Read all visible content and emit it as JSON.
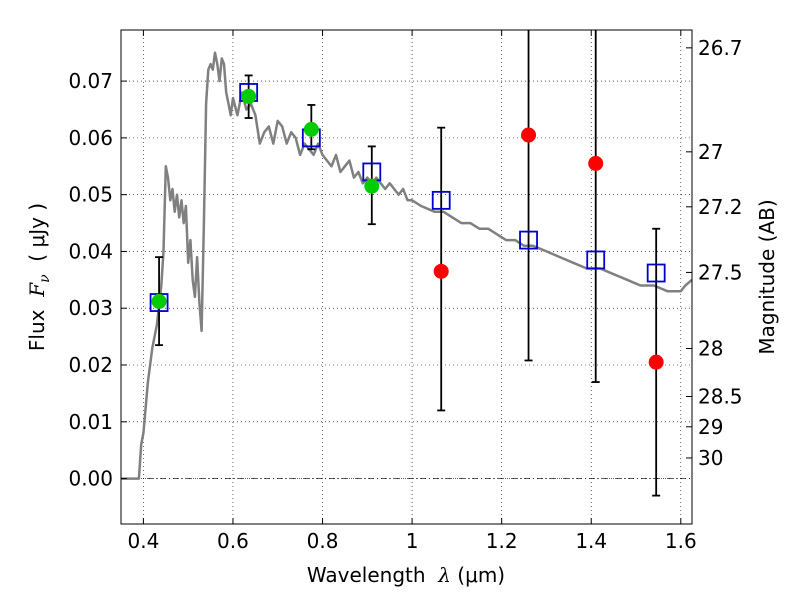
{
  "chart_data": {
    "type": "scatter",
    "xlabel": {
      "prefix": "Wavelength  ",
      "symbol": "λ",
      "suffix": " (μm)"
    },
    "ylabel": {
      "prefix": "Flux  ",
      "symbol": "F",
      "sub": "ν",
      "suffix": "  ( μJy )"
    },
    "y2label": "Magnitude (AB)",
    "xlim": [
      0.35,
      1.625
    ],
    "ylim": [
      -0.008,
      0.079
    ],
    "grid": true,
    "xticks": [
      {
        "value": 0.4,
        "label": "0.4"
      },
      {
        "value": 0.6,
        "label": "0.6"
      },
      {
        "value": 0.8,
        "label": "0.8"
      },
      {
        "value": 1.0,
        "label": "1"
      },
      {
        "value": 1.2,
        "label": "1.2"
      },
      {
        "value": 1.4,
        "label": "1.4"
      },
      {
        "value": 1.6,
        "label": "1.6"
      }
    ],
    "yticks": [
      {
        "value": 0.0,
        "label": "0.00"
      },
      {
        "value": 0.01,
        "label": "0.01"
      },
      {
        "value": 0.02,
        "label": "0.02"
      },
      {
        "value": 0.03,
        "label": "0.03"
      },
      {
        "value": 0.04,
        "label": "0.04"
      },
      {
        "value": 0.05,
        "label": "0.05"
      },
      {
        "value": 0.06,
        "label": "0.06"
      },
      {
        "value": 0.07,
        "label": "0.07"
      }
    ],
    "y2ticks": [
      {
        "label": "26.7",
        "value": 26.7
      },
      {
        "label": "27",
        "value": 27.0
      },
      {
        "label": "27.2",
        "value": 27.2
      },
      {
        "label": "27.5",
        "value": 27.5
      },
      {
        "label": "28",
        "value": 28.0
      },
      {
        "label": "28.5",
        "value": 28.5
      },
      {
        "label": "29",
        "value": 29.0
      },
      {
        "label": "30",
        "value": 30.0
      }
    ],
    "series": [
      {
        "kind": "line",
        "color": "#808080",
        "x": [
          0.35,
          0.38,
          0.39,
          0.395,
          0.4,
          0.41,
          0.42,
          0.43,
          0.44,
          0.445,
          0.45,
          0.455,
          0.46,
          0.465,
          0.47,
          0.475,
          0.48,
          0.485,
          0.49,
          0.495,
          0.5,
          0.505,
          0.51,
          0.515,
          0.52,
          0.525,
          0.53,
          0.535,
          0.54,
          0.545,
          0.55,
          0.555,
          0.56,
          0.565,
          0.57,
          0.575,
          0.58,
          0.585,
          0.59,
          0.595,
          0.6,
          0.61,
          0.62,
          0.63,
          0.64,
          0.65,
          0.66,
          0.67,
          0.68,
          0.69,
          0.7,
          0.71,
          0.72,
          0.73,
          0.74,
          0.75,
          0.76,
          0.77,
          0.78,
          0.79,
          0.8,
          0.81,
          0.82,
          0.83,
          0.84,
          0.85,
          0.86,
          0.87,
          0.88,
          0.89,
          0.9,
          0.91,
          0.92,
          0.93,
          0.94,
          0.95,
          0.96,
          0.97,
          0.98,
          0.99,
          1.0,
          1.02,
          1.05,
          1.07,
          1.09,
          1.11,
          1.13,
          1.15,
          1.17,
          1.19,
          1.21,
          1.23,
          1.25,
          1.27,
          1.3,
          1.33,
          1.36,
          1.39,
          1.42,
          1.45,
          1.48,
          1.51,
          1.54,
          1.57,
          1.59,
          1.6,
          1.61,
          1.625
        ],
        "y": [
          0.0,
          0.0,
          0.0,
          0.006,
          0.008,
          0.017,
          0.023,
          0.027,
          0.034,
          0.04,
          0.055,
          0.053,
          0.049,
          0.051,
          0.047,
          0.05,
          0.046,
          0.049,
          0.045,
          0.048,
          0.038,
          0.042,
          0.035,
          0.032,
          0.039,
          0.031,
          0.026,
          0.045,
          0.066,
          0.072,
          0.073,
          0.072,
          0.075,
          0.073,
          0.07,
          0.074,
          0.073,
          0.068,
          0.066,
          0.064,
          0.067,
          0.064,
          0.068,
          0.065,
          0.066,
          0.064,
          0.059,
          0.061,
          0.062,
          0.059,
          0.063,
          0.062,
          0.059,
          0.061,
          0.06,
          0.057,
          0.059,
          0.058,
          0.057,
          0.059,
          0.057,
          0.056,
          0.055,
          0.057,
          0.054,
          0.055,
          0.056,
          0.053,
          0.054,
          0.052,
          0.053,
          0.052,
          0.053,
          0.052,
          0.051,
          0.052,
          0.051,
          0.05,
          0.051,
          0.049,
          0.049,
          0.048,
          0.047,
          0.047,
          0.046,
          0.045,
          0.045,
          0.044,
          0.044,
          0.043,
          0.042,
          0.042,
          0.041,
          0.041,
          0.04,
          0.039,
          0.038,
          0.037,
          0.037,
          0.036,
          0.035,
          0.034,
          0.034,
          0.033,
          0.033,
          0.033,
          0.034,
          0.035
        ]
      },
      {
        "kind": "open-square",
        "color": "#0000cc",
        "x": [
          0.435,
          0.635,
          0.775,
          0.91,
          1.065,
          1.26,
          1.41,
          1.545
        ],
        "y": [
          0.031,
          0.068,
          0.06,
          0.054,
          0.049,
          0.042,
          0.0385,
          0.0362
        ]
      },
      {
        "kind": "filled-circle",
        "color": "#00cc00",
        "x": [
          0.435,
          0.635,
          0.775,
          0.91
        ],
        "y": [
          0.0312,
          0.0673,
          0.0615,
          0.0515
        ]
      },
      {
        "kind": "filled-circle",
        "color": "#ff0000",
        "x": [
          1.065,
          1.26,
          1.41,
          1.545
        ],
        "y": [
          0.0365,
          0.0605,
          0.0555,
          0.0205
        ]
      },
      {
        "kind": "errorbar",
        "color": "#000000",
        "x": [
          0.435,
          0.635,
          0.775,
          0.91,
          1.065,
          1.26,
          1.41,
          1.545
        ],
        "y_low": [
          0.0235,
          0.0635,
          0.058,
          0.0448,
          0.012,
          0.0208,
          0.017,
          -0.003
        ],
        "y_high": [
          0.039,
          0.071,
          0.0658,
          0.0585,
          0.0618,
          0.0805,
          0.0805,
          0.044
        ]
      }
    ]
  }
}
